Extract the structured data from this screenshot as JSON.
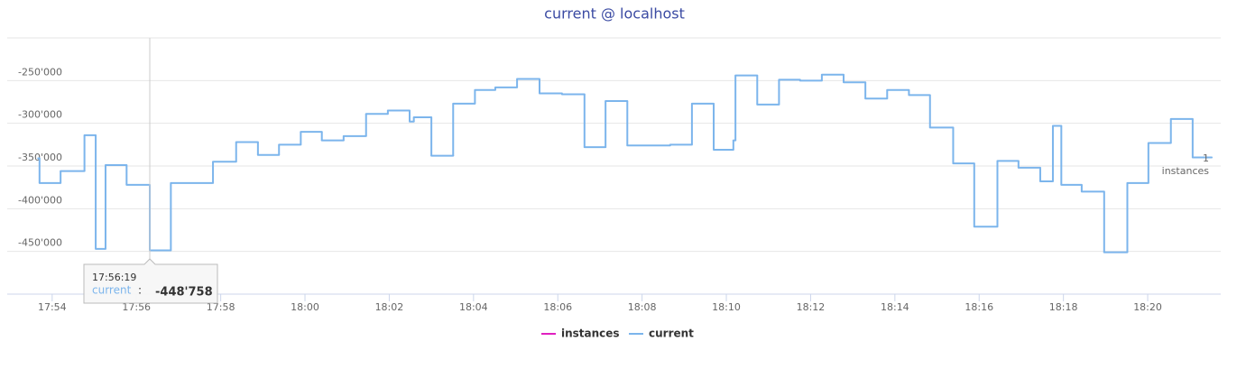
{
  "chart_data": {
    "type": "step-line",
    "title": "current @ localhost",
    "x": [
      "17:53:40",
      "17:53:42",
      "17:54:12",
      "17:54:46",
      "17:55:02",
      "17:55:16",
      "17:55:46",
      "17:56:19",
      "17:56:49",
      "17:57:49",
      "17:58:22",
      "17:58:53",
      "17:59:23",
      "17:59:54",
      "18:00:24",
      "18:00:55",
      "18:01:27",
      "18:01:58",
      "18:02:29",
      "18:02:35",
      "18:03:00",
      "18:03:31",
      "18:04:02",
      "18:04:31",
      "18:05:02",
      "18:05:34",
      "18:06:06",
      "18:06:38",
      "18:07:08",
      "18:07:39",
      "18:08:40",
      "18:09:11",
      "18:09:42",
      "18:10:10",
      "18:10:13",
      "18:10:44",
      "18:11:15",
      "18:11:45",
      "18:12:16",
      "18:12:47",
      "18:13:18",
      "18:13:49",
      "18:14:20",
      "18:14:50",
      "18:15:23",
      "18:15:53",
      "18:16:26",
      "18:16:56",
      "18:17:27",
      "18:17:45",
      "18:17:57",
      "18:18:26",
      "18:18:58",
      "18:19:31",
      "18:20:01",
      "18:20:33",
      "18:21:04",
      "18:21:31"
    ],
    "series": [
      {
        "name": "instances",
        "color": "#e020c0"
      },
      {
        "name": "current",
        "color": "#7cb5ec",
        "values": [
          -341000,
          -370000,
          -356000,
          -314000,
          -447000,
          -349000,
          -372000,
          -448758,
          -370000,
          -345000,
          -322000,
          -337000,
          -325000,
          -310000,
          -320000,
          -315000,
          -289000,
          -285000,
          -298000,
          -293000,
          -338000,
          -277000,
          -261000,
          -258000,
          -248000,
          -265000,
          -266000,
          -328000,
          -274000,
          -326000,
          -325000,
          -277000,
          -331000,
          -320000,
          -244000,
          -278000,
          -249000,
          -250000,
          -243000,
          -252000,
          -271000,
          -261000,
          -267000,
          -305000,
          -347000,
          -421000,
          -344000,
          -352000,
          -368000,
          -303000,
          -372000,
          -380000,
          -451000,
          -370000,
          -323000,
          -295000,
          -340000,
          -340000
        ]
      }
    ],
    "xlim": [
      "17:52:56",
      "18:21:44"
    ],
    "xticks": [
      "17:54",
      "17:56",
      "17:58",
      "18:00",
      "18:02",
      "18:04",
      "18:06",
      "18:08",
      "18:10",
      "18:12",
      "18:14",
      "18:16",
      "18:18",
      "18:20"
    ],
    "ylim": [
      -500000,
      -200000
    ],
    "yticks": [
      {
        "value": -250000,
        "label": "-250'000"
      },
      {
        "value": -300000,
        "label": "-300'000"
      },
      {
        "value": -350000,
        "label": "-350'000"
      },
      {
        "value": -400000,
        "label": "-400'000"
      },
      {
        "value": -450000,
        "label": "-450'000"
      }
    ],
    "grid": true,
    "annotations": [
      "1",
      "instances"
    ],
    "tooltip": {
      "x": "17:56:19",
      "name": "current",
      "value_label": "-448'758"
    }
  }
}
